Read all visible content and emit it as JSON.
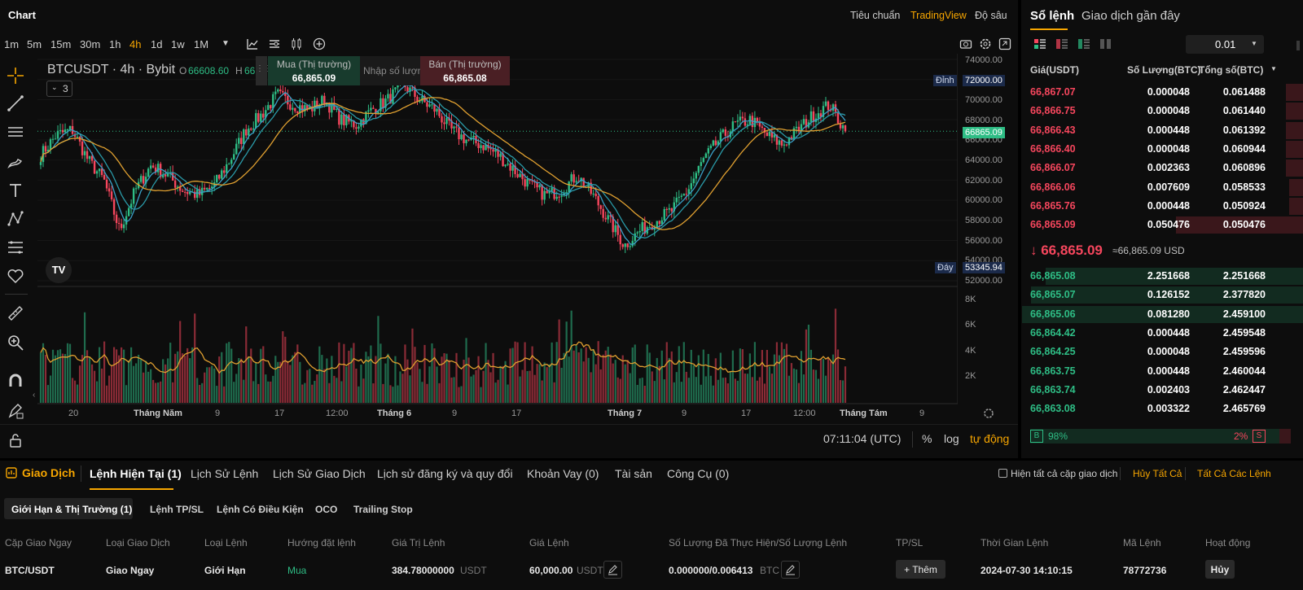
{
  "chart_header": {
    "title": "Chart",
    "modes": [
      "Tiêu chuẩn",
      "TradingView",
      "Độ sâu"
    ]
  },
  "timeframes": [
    "1m",
    "5m",
    "15m",
    "30m",
    "1h",
    "4h",
    "1d",
    "1w",
    "1M"
  ],
  "active_timeframe": "4h",
  "symbol": {
    "label": "BTCUSDT · 4h · Bybit",
    "open_label": "O",
    "open_value": "66608.60",
    "high_label": "H",
    "high_value": "66"
  },
  "indicators_toggle": "3",
  "order_widget": {
    "buy_label": "Mua (Thị trường)",
    "buy_price": "66,865.09",
    "qty_placeholder": "Nhập số lượng",
    "sell_label": "Bán (Thị trường)",
    "sell_price": "66,865.08"
  },
  "price_axis": {
    "ticks": [
      "74000.00",
      "72000.00",
      "70000.00",
      "68000.00",
      "66000.00",
      "64000.00",
      "62000.00",
      "60000.00",
      "58000.00",
      "56000.00",
      "54000.00",
      "52000.00"
    ],
    "top_label": "Đỉnh",
    "top_value": "72000.00",
    "bottom_label": "Đáy",
    "bottom_value": "53345.94",
    "last_price": "66865.09"
  },
  "volume_axis": {
    "ticks": [
      "8K",
      "6K",
      "4K",
      "2K"
    ]
  },
  "time_axis": {
    "ticks": [
      "20",
      "Tháng Năm",
      "9",
      "17",
      "12:00",
      "Tháng 6",
      "9",
      "17",
      "Tháng 7",
      "9",
      "17",
      "12:00",
      "Tháng Tám",
      "9"
    ]
  },
  "chart_footer": {
    "time": "07:11:04 (UTC)",
    "percent": "%",
    "log": "log",
    "auto": "tự động"
  },
  "chart_data": {
    "type": "candlestick",
    "symbol": "BTCUSDT",
    "interval": "4h",
    "ylim": [
      52000,
      74000
    ],
    "y_top_marker": 72000,
    "y_bottom_marker": 53345.94,
    "last_price": 66865.09,
    "open": 66608.6,
    "volume_ylim": [
      0,
      8000
    ],
    "close_path": [
      64500,
      66500,
      67000,
      64000,
      62000,
      57000,
      61000,
      63500,
      62500,
      61000,
      60500,
      61500,
      64000,
      67000,
      68500,
      70500,
      69500,
      69000,
      70000,
      68000,
      67500,
      69000,
      70000,
      71500,
      70000,
      69000,
      67000,
      66000,
      65500,
      64500,
      63000,
      61500,
      60500,
      61000,
      62500,
      60500,
      58000,
      55500,
      57000,
      58000,
      59000,
      61000,
      64000,
      66000,
      67500,
      68000,
      66500,
      65500,
      67000,
      68500,
      69500,
      66865
    ]
  },
  "orderbook": {
    "tabs": [
      "Sổ lệnh",
      "Giao dịch gần đây"
    ],
    "precision": "0.01",
    "headers": {
      "price": "Giá(USDT)",
      "qty": "Số Lượng(BTC)",
      "total": "Tổng số(BTC)"
    },
    "asks": [
      [
        "66,867.07",
        "0.000048",
        "0.061488"
      ],
      [
        "66,866.75",
        "0.000048",
        "0.061440"
      ],
      [
        "66,866.43",
        "0.000448",
        "0.061392"
      ],
      [
        "66,866.40",
        "0.000048",
        "0.060944"
      ],
      [
        "66,866.07",
        "0.002363",
        "0.060896"
      ],
      [
        "66,866.06",
        "0.007609",
        "0.058533"
      ],
      [
        "66,865.76",
        "0.000448",
        "0.050924"
      ],
      [
        "66,865.09",
        "0.050476",
        "0.050476"
      ]
    ],
    "last_price": "↓ 66,865.09",
    "last_price_usd": "≈66,865.09 USD",
    "bids": [
      [
        "66,865.08",
        "2.251668",
        "2.251668"
      ],
      [
        "66,865.07",
        "0.126152",
        "2.377820"
      ],
      [
        "66,865.06",
        "0.081280",
        "2.459100"
      ],
      [
        "66,864.42",
        "0.000448",
        "2.459548"
      ],
      [
        "66,864.25",
        "0.000048",
        "2.459596"
      ],
      [
        "66,863.75",
        "0.000448",
        "2.460044"
      ],
      [
        "66,863.74",
        "0.002403",
        "2.462447"
      ],
      [
        "66,863.08",
        "0.003322",
        "2.465769"
      ]
    ],
    "ratio": {
      "buy_letter": "B",
      "buy_pct": "98%",
      "sell_pct": "2%",
      "sell_letter": "S",
      "buy_fraction": 0.98
    }
  },
  "trade": {
    "section_label": "Giao Dịch",
    "tabs": [
      "Lệnh Hiện Tại (1)",
      "Lịch Sử Lệnh",
      "Lịch Sử Giao Dịch",
      "Lịch sử đăng ký và quy đổi",
      "Khoản Vay (0)",
      "Tài sản",
      "Công Cụ (0)"
    ],
    "show_all_pairs": "Hiện tất cả cặp giao dịch",
    "cancel_all": "Hủy Tất Cả",
    "all_orders": "Tất Cả Các Lệnh",
    "subtabs": [
      "Giới Hạn & Thị Trường  (1)",
      "Lệnh TP/SL",
      "Lệnh Có Điều Kiện",
      "OCO",
      "Trailing Stop"
    ],
    "columns": [
      "Cặp Giao Ngay",
      "Loại Giao Dịch",
      "Loại Lệnh",
      "Hướng đặt lệnh",
      "Giá Trị Lệnh",
      "Giá Lệnh",
      "Số Lượng Đã Thực Hiện/Số Lượng Lệnh",
      "TP/SL",
      "Thời Gian Lệnh",
      "Mã Lệnh",
      "Hoạt động"
    ],
    "row": {
      "pair": "BTC/USDT",
      "trade_type": "Giao Ngay",
      "order_type": "Giới Hạn",
      "side": "Mua",
      "value": "384.78000000",
      "value_unit": "USDT",
      "price": "60,000.00",
      "price_unit": "USDT",
      "filled": "0.000000/0.006413",
      "filled_unit": "BTC",
      "tpsl": "+ Thêm",
      "time": "2024-07-30 14:10:15",
      "order_id": "78772736",
      "action": "Hủy"
    }
  }
}
